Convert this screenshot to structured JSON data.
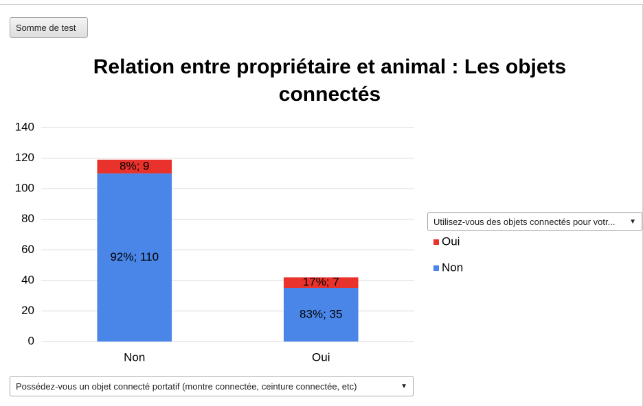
{
  "chart_data": {
    "type": "stacked_bar",
    "title": "Relation entre propriétaire et animal : Les objets connectés",
    "value_field": "Somme de test",
    "legend_title": "Utilisez-vous des objets connectés pour votr...",
    "x_field": "Possédez-vous un objet connecté portatif (montre connectée, ceinture connectée, etc)",
    "categories": [
      "Non",
      "Oui"
    ],
    "series": [
      {
        "name": "Non",
        "color": "#4a86e8",
        "values": [
          110,
          35
        ],
        "value_labels": [
          "92%; 110",
          "83%; 35"
        ]
      },
      {
        "name": "Oui",
        "color": "#e8322b",
        "values": [
          9,
          7
        ],
        "value_labels": [
          "8%; 9",
          "17%; 7"
        ]
      }
    ],
    "ylim": [
      0,
      140
    ],
    "yticks": [
      0,
      20,
      40,
      60,
      80,
      100,
      120,
      140
    ],
    "grid": true,
    "legend": "right"
  }
}
